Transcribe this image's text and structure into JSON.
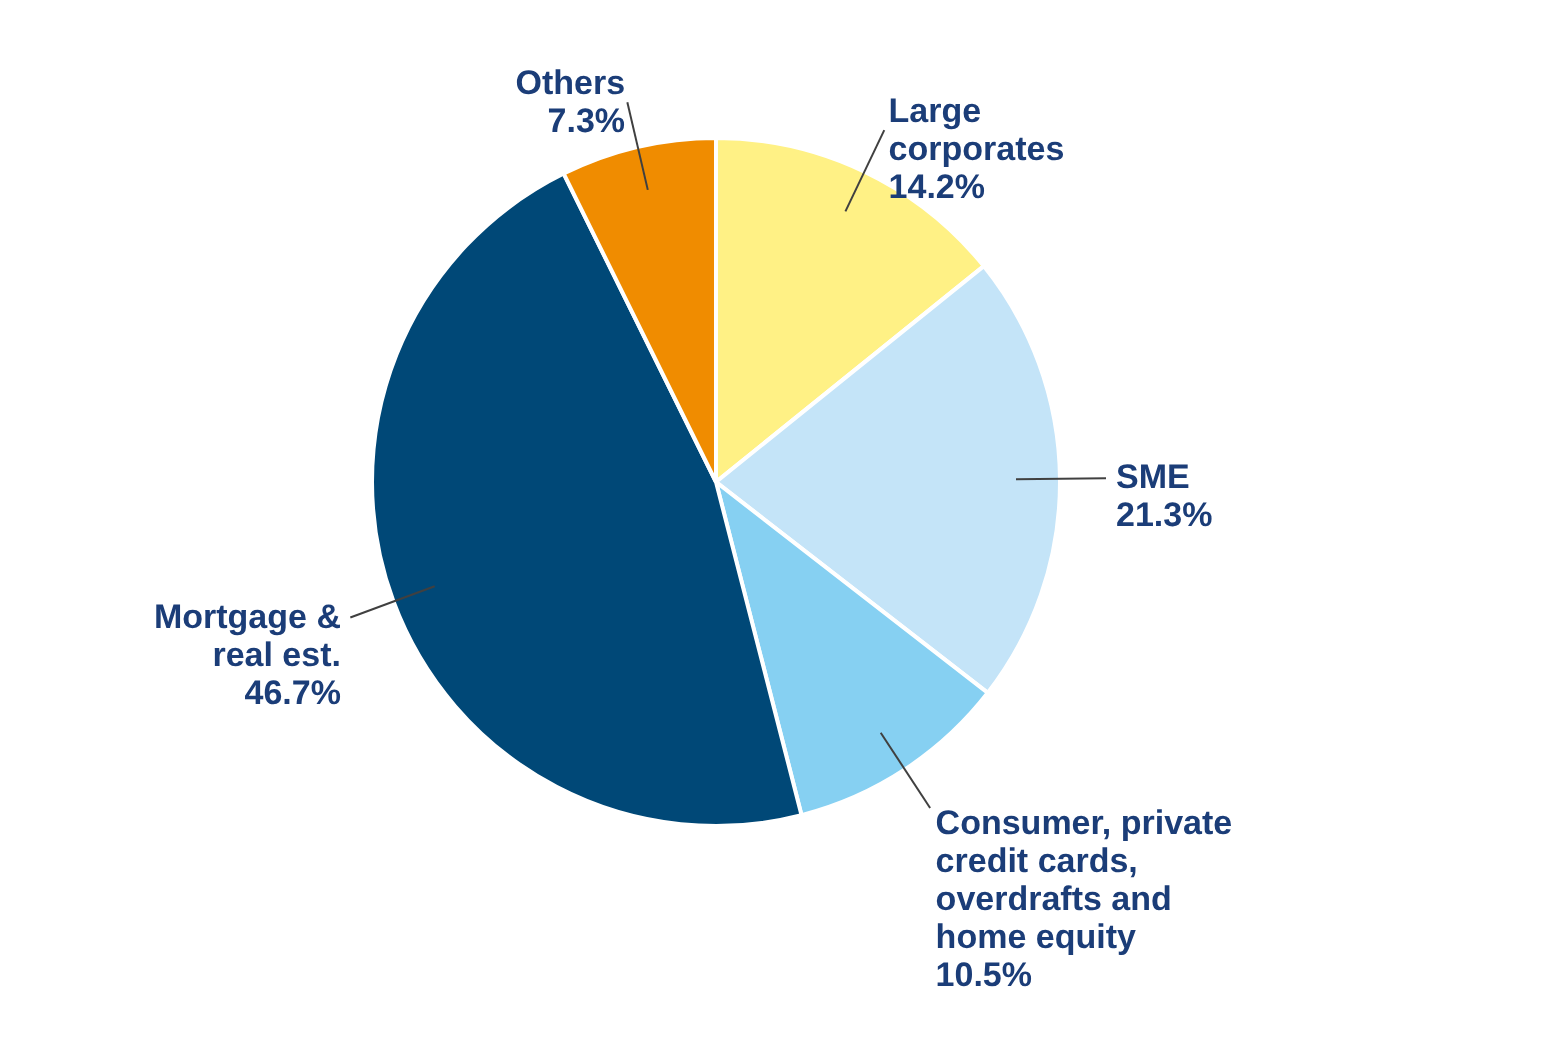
{
  "chart_data": {
    "type": "pie",
    "categories": [
      "Large\ncorporates",
      "SME",
      "Consumer, private\ncredit cards,\noverdrafts and\nhome equity",
      "Mortgage &\nreal est.",
      "Others"
    ],
    "values": [
      14.2,
      21.3,
      10.5,
      46.7,
      7.3
    ],
    "value_labels": [
      "14.2%",
      "21.3%",
      "10.5%",
      "46.7%",
      "7.3%"
    ],
    "colors": [
      "#fff185",
      "#c4e4f8",
      "#86d0f2",
      "#004877",
      "#f08c00"
    ]
  }
}
